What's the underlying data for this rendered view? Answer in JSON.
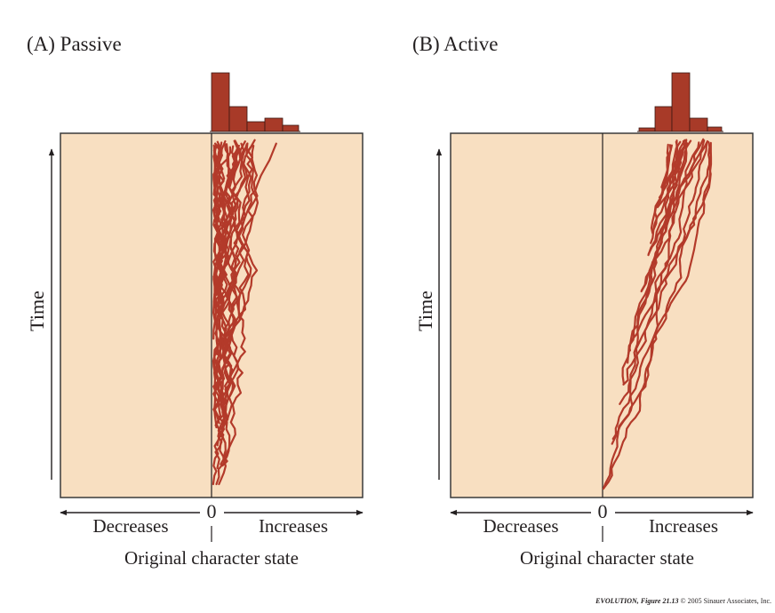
{
  "colors": {
    "background": "#f8dfc1",
    "trace": "#b33a2a",
    "bar": "#a83a28",
    "frame": "#3a3a3a"
  },
  "panel_a": {
    "title": "(A)  Passive",
    "time_label": "Time",
    "decreases_label": "Decreases",
    "increases_label": "Increases",
    "zero_label": "0",
    "origin_label": "Original character state"
  },
  "panel_b": {
    "title": "(B)  Active",
    "time_label": "Time",
    "decreases_label": "Decreases",
    "increases_label": "Increases",
    "zero_label": "0",
    "origin_label": "Original character state"
  },
  "credit": {
    "book": "EVOLUTION,",
    "figure": " Figure 21.13",
    "copyright": "  © 2005 Sinauer Associates, Inc."
  }
}
